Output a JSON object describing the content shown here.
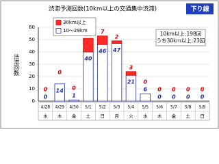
{
  "chart_data": {
    "type": "bar",
    "stacked": true,
    "title": "渋滞予測回数(10km以上の交通集中渋滞)",
    "direction_label": "下り線",
    "y_label": "渋滞回数",
    "categories": [
      "4/28",
      "4/29",
      "4/30",
      "5/1",
      "5/2",
      "5/3",
      "5/4",
      "5/5",
      "5/6",
      "5/7",
      "5/8",
      "5/9"
    ],
    "weekdays": [
      "水",
      "木",
      "金",
      "土",
      "日",
      "月",
      "火",
      "水",
      "木",
      "金",
      "土",
      "日"
    ],
    "series": [
      {
        "name": "10～29km",
        "color": "#ffffff",
        "edge": "#1f2f9f",
        "label_color": "#1f2f9f",
        "values": [
          0,
          14,
          1,
          40,
          46,
          47,
          21,
          6,
          0,
          0,
          0,
          0
        ]
      },
      {
        "name": "30km以上",
        "color": "#ff2a2a",
        "edge": "#cc0000",
        "label_color": "#e00000",
        "values": [
          0,
          0,
          0,
          11,
          7,
          2,
          3,
          0,
          0,
          0,
          0,
          0
        ]
      }
    ],
    "annotations": [
      "10km以上:198回",
      "うち30km以上:23回"
    ],
    "ylim": [
      0,
      60
    ],
    "yticks": [
      0,
      10,
      20,
      30,
      40,
      50,
      60
    ],
    "grid": true
  }
}
